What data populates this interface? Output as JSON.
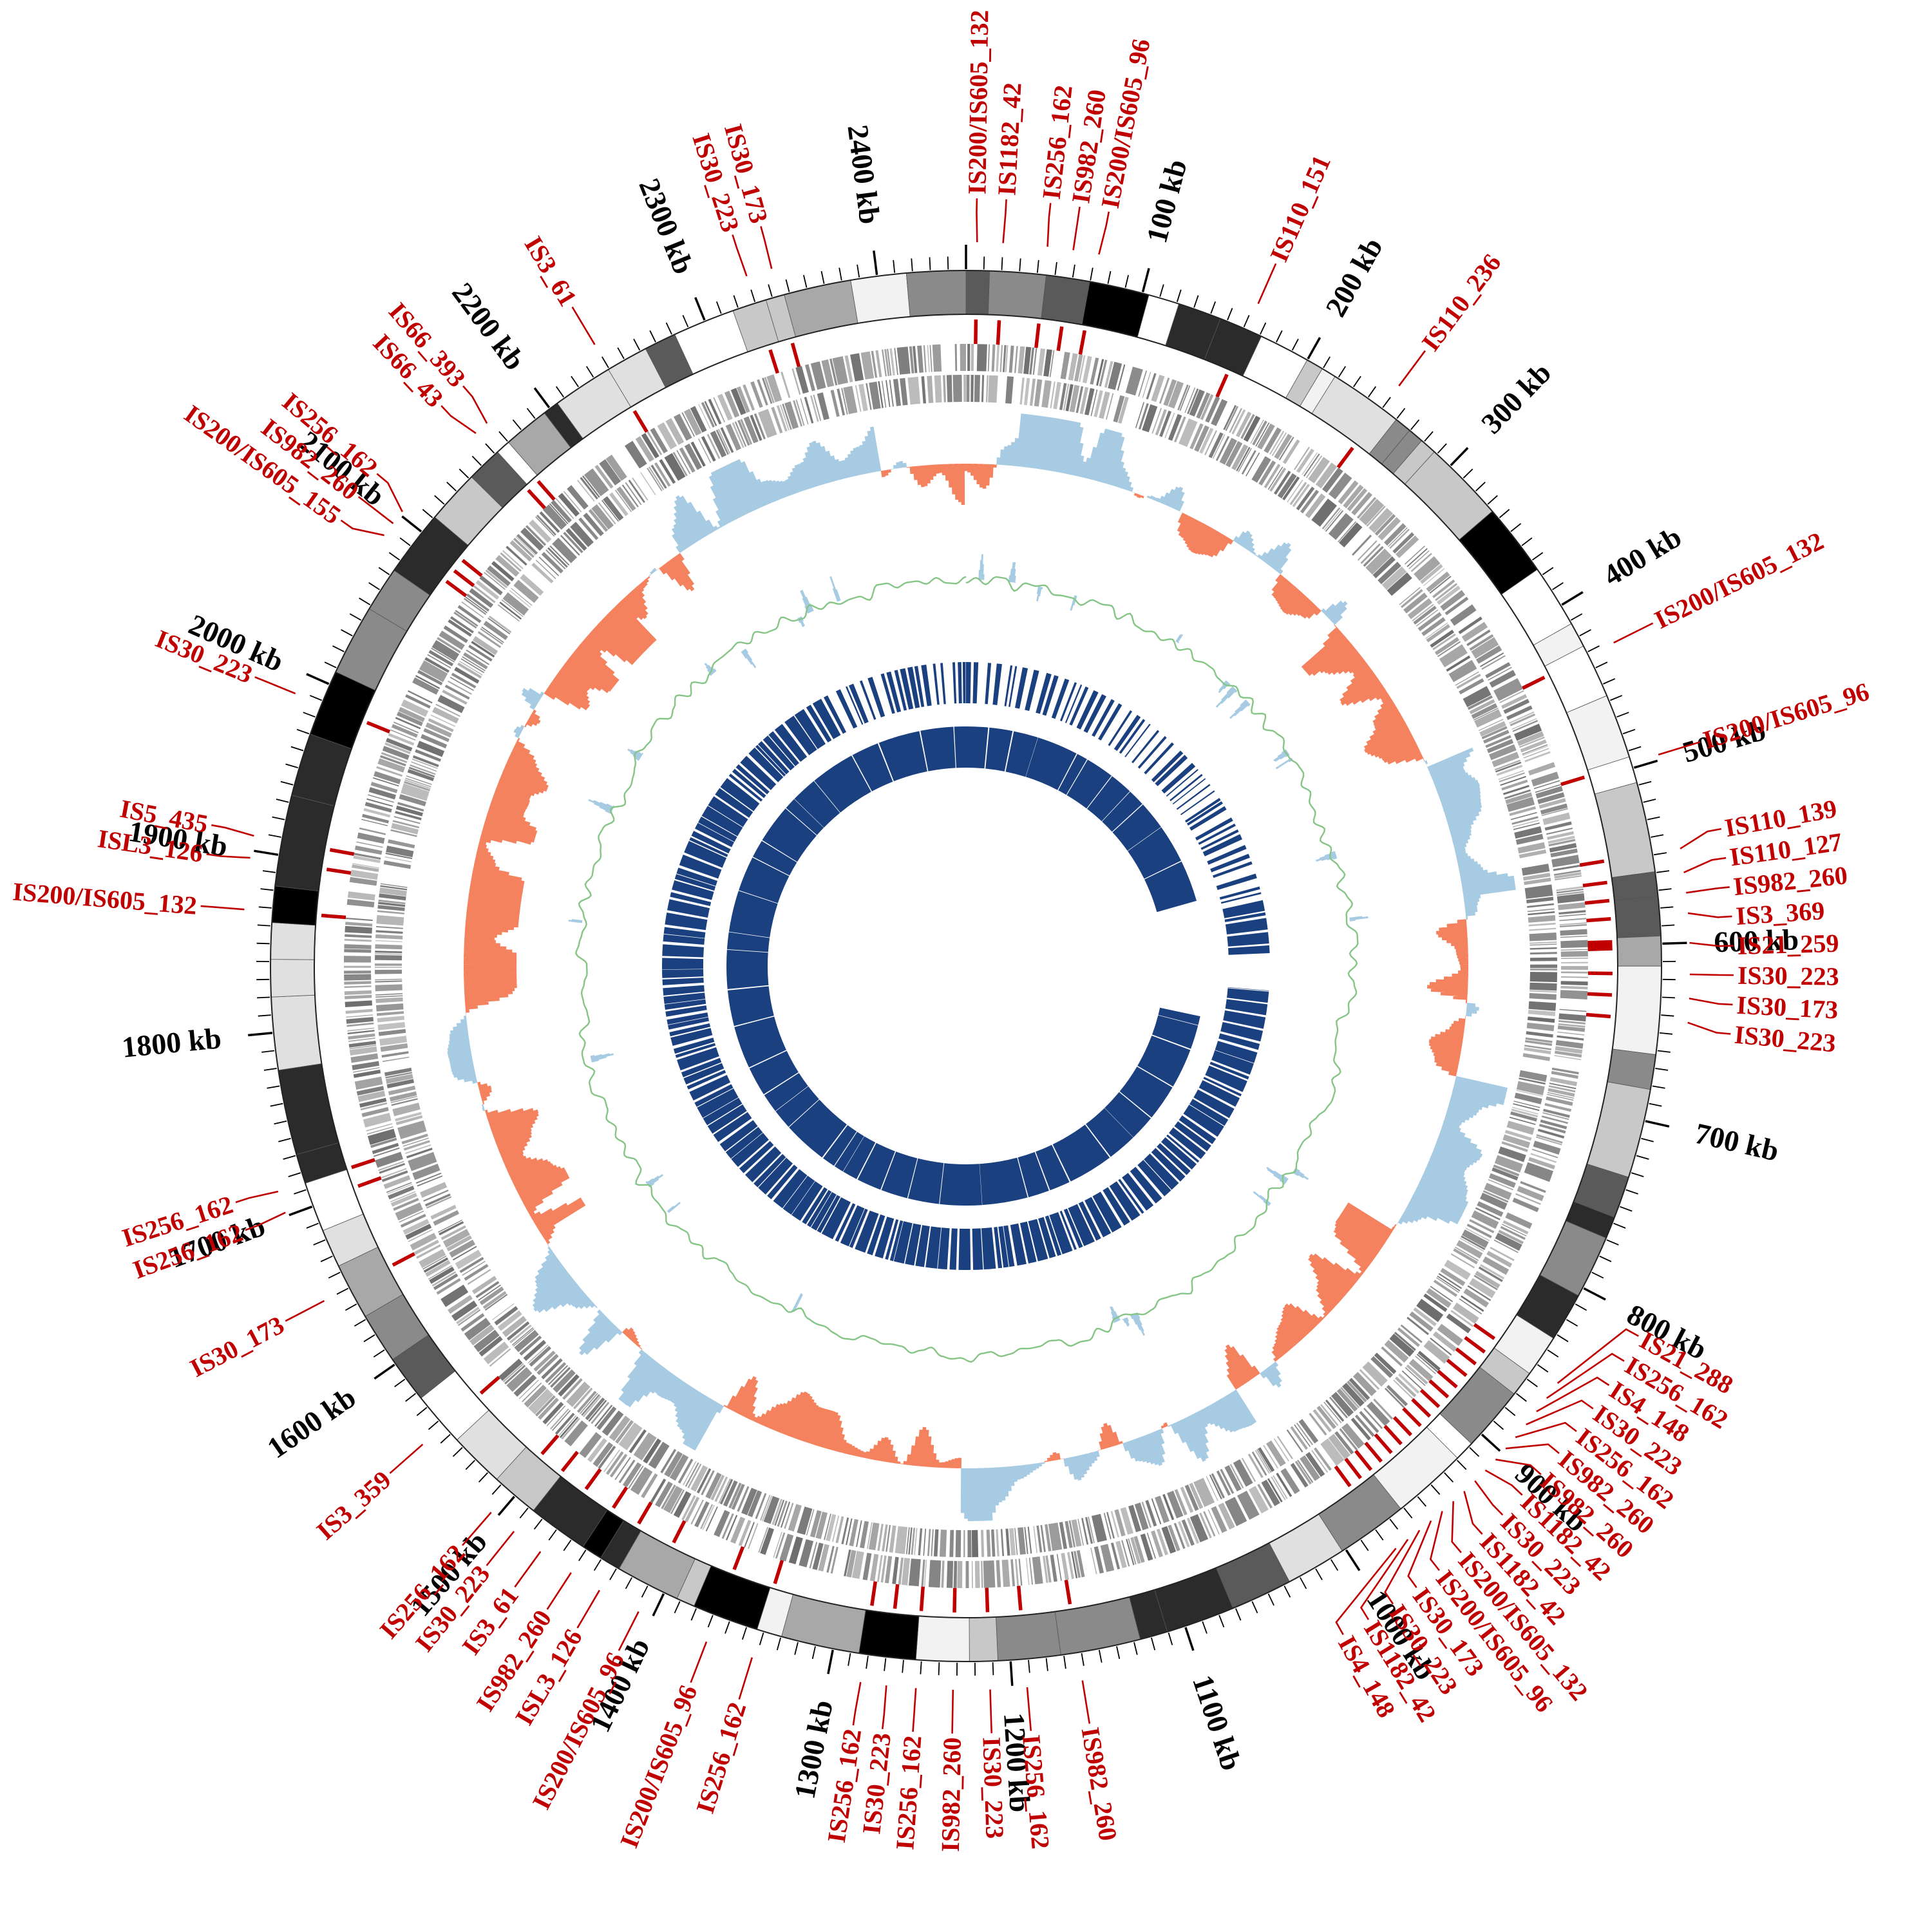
{
  "chart_data": {
    "type": "circular_genome_plot",
    "genome_length_kb": 2450,
    "scale_unit_suffix": " kb",
    "scale_tick_major_kb": 100,
    "scale_tick_minor_kb": 10,
    "scale_labels_kb": [
      100,
      200,
      300,
      400,
      500,
      600,
      700,
      800,
      900,
      1000,
      1100,
      1200,
      1300,
      1400,
      1500,
      1600,
      1700,
      1800,
      1900,
      2000,
      2100,
      2200,
      2300,
      2400
    ],
    "is_elements": [
      {
        "label": "IS200/IS605_132",
        "kb": 6
      },
      {
        "label": "IS1182_42",
        "kb": 20
      },
      {
        "label": "IS256_162",
        "kb": 44
      },
      {
        "label": "IS982_260",
        "kb": 58
      },
      {
        "label": "IS200/IS605_96",
        "kb": 72
      },
      {
        "label": "IS110_151",
        "kb": 162
      },
      {
        "label": "IS110_236",
        "kb": 250
      },
      {
        "label": "IS200/IS605_132",
        "kb": 432
      },
      {
        "label": "IS200/IS605_96",
        "kb": 497
      },
      {
        "label": "IS110_139",
        "kb": 549
      },
      {
        "label": "IS110_127",
        "kb": 562
      },
      {
        "label": "IS982_260",
        "kb": 573
      },
      {
        "label": "IS3_369",
        "kb": 584
      },
      {
        "label": "IS21_259",
        "kb": 600,
        "wide": true
      },
      {
        "label": "IS30_223",
        "kb": 617
      },
      {
        "label": "IS30_173",
        "kb": 630
      },
      {
        "label": "IS30_223",
        "kb": 643
      },
      {
        "label": "IS21_288",
        "kb": 852
      },
      {
        "label": "IS256_162",
        "kb": 862
      },
      {
        "label": "IS4_148",
        "kb": 871
      },
      {
        "label": "IS30_223",
        "kb": 880
      },
      {
        "label": "IS256_162",
        "kb": 889
      },
      {
        "label": "IS982_260",
        "kb": 897
      },
      {
        "label": "IS982_260",
        "kb": 905
      },
      {
        "label": "IS1182_42",
        "kb": 913
      },
      {
        "label": "IS30_223",
        "kb": 921
      },
      {
        "label": "IS1182_42",
        "kb": 929
      },
      {
        "label": "IS200/IS605_132",
        "kb": 937
      },
      {
        "label": "IS200/IS605_96",
        "kb": 945
      },
      {
        "label": "IS30_173",
        "kb": 953
      },
      {
        "label": "IS30_223",
        "kb": 961
      },
      {
        "label": "IS1182_42",
        "kb": 969
      },
      {
        "label": "IS4_148",
        "kb": 977
      },
      {
        "label": "IS982_260",
        "kb": 1162
      },
      {
        "label": "IS256_162",
        "kb": 1192
      },
      {
        "label": "IS30_223",
        "kb": 1212
      },
      {
        "label": "IS982_260",
        "kb": 1232
      },
      {
        "label": "IS256_162",
        "kb": 1252
      },
      {
        "label": "IS30_223",
        "kb": 1268
      },
      {
        "label": "IS256_162",
        "kb": 1282
      },
      {
        "label": "IS256_162",
        "kb": 1342
      },
      {
        "label": "IS200/IS605_96",
        "kb": 1368
      },
      {
        "label": "IS200/IS605_96",
        "kb": 1408
      },
      {
        "label": "ISL3_126",
        "kb": 1432
      },
      {
        "label": "IS982_260",
        "kb": 1450
      },
      {
        "label": "IS3_61",
        "kb": 1470
      },
      {
        "label": "IS30_223",
        "kb": 1488
      },
      {
        "label": "IS256_162",
        "kb": 1504
      },
      {
        "label": "IS3_359",
        "kb": 1556
      },
      {
        "label": "IS30_173",
        "kb": 1650
      },
      {
        "label": "IS256_162",
        "kb": 1702
      },
      {
        "label": "IS256_162",
        "kb": 1714
      },
      {
        "label": "IS200/IS605_132",
        "kb": 1868
      },
      {
        "label": "ISL3_126",
        "kb": 1896
      },
      {
        "label": "IS5_435",
        "kb": 1908
      },
      {
        "label": "IS30_223",
        "kb": 1988
      },
      {
        "label": "IS200/IS605_155",
        "kb": 2086
      },
      {
        "label": "IS982_260",
        "kb": 2094
      },
      {
        "label": "IS256_162",
        "kb": 2102
      },
      {
        "label": "IS66_43",
        "kb": 2160
      },
      {
        "label": "IS66_393",
        "kb": 2168
      },
      {
        "label": "IS3_61",
        "kb": 2240
      },
      {
        "label": "IS30_223",
        "kb": 2330
      },
      {
        "label": "IS30_173",
        "kb": 2344
      }
    ],
    "skew_regions": [
      {
        "s": 0,
        "e": 40,
        "sign": -1
      },
      {
        "s": 40,
        "e": 330,
        "sign": 1
      },
      {
        "s": 330,
        "e": 455,
        "sign": -1
      },
      {
        "s": 455,
        "e": 560,
        "sign": 1
      },
      {
        "s": 560,
        "e": 700,
        "sign": -1
      },
      {
        "s": 700,
        "e": 830,
        "sign": 1
      },
      {
        "s": 830,
        "e": 1005,
        "sign": -1
      },
      {
        "s": 1005,
        "e": 1230,
        "sign": 1
      },
      {
        "s": 1230,
        "e": 1425,
        "sign": -1
      },
      {
        "s": 1425,
        "e": 1620,
        "sign": 1
      },
      {
        "s": 1620,
        "e": 2155,
        "sign": -1
      },
      {
        "s": 2155,
        "e": 2385,
        "sign": 1
      },
      {
        "s": 2385,
        "e": 2450,
        "sign": -1
      }
    ],
    "tracks": [
      {
        "id": "ideogram"
      },
      {
        "id": "scale-ruler"
      },
      {
        "id": "is-position-ticks"
      },
      {
        "id": "genes-forward"
      },
      {
        "id": "genes-reverse"
      },
      {
        "id": "gc-skew"
      },
      {
        "id": "gc-line"
      },
      {
        "id": "blocks-outer"
      },
      {
        "id": "blocks-inner",
        "gap_kb": [
          505,
          695
        ]
      }
    ],
    "colors": {
      "background": "#ffffff",
      "label_red": "#c00000",
      "scale_text": "#000000",
      "ideogram_palette": [
        "#ffffff",
        "#f2f2f2",
        "#e0e0e0",
        "#c8c8c8",
        "#a8a8a8",
        "#8a8a8a",
        "#5a5a5a",
        "#2b2b2b",
        "#000000"
      ],
      "gene_gray": "#9a9a9a",
      "skew_positive": "#a6cbe3",
      "skew_negative": "#f4825f",
      "line_green": "#86c586",
      "spike_blue": "#a6cbe3",
      "navy": "#1b4080"
    }
  }
}
